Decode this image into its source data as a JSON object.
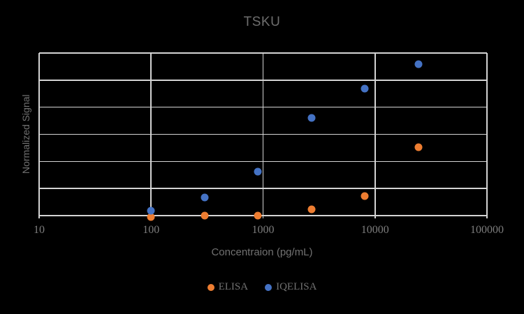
{
  "colors": {
    "background": "#000000",
    "gridline": "#d4d4d4",
    "title_text": "#6e6e6e",
    "axis_text": "#717171",
    "tick_text": "#7d7d7d",
    "elisa_orange": "#ED7D31",
    "iqelisa_blue": "#4472C4"
  },
  "chart_data": {
    "type": "scatter",
    "title": "TSKU",
    "xlabel": "Concentraion (pg/mL)",
    "ylabel": "Normalized Signal",
    "x_scale": "log10",
    "xlim": [
      10,
      100000
    ],
    "x_ticks": [
      "10",
      "100",
      "1000",
      "10000",
      "100000"
    ],
    "ylim": [
      0,
      1
    ],
    "y_tick_labels_shown": false,
    "y_divisions": 6,
    "grid": true,
    "legend_position": "bottom",
    "x": [
      100,
      300,
      900,
      2700,
      8100,
      24300
    ],
    "series": [
      {
        "name": "ELISA",
        "color": "#ED7D31",
        "values": [
          -0.008,
          0.0,
          0.0,
          0.04,
          0.12,
          0.42
        ]
      },
      {
        "name": "IQELISA",
        "color": "#4472C4",
        "values": [
          0.03,
          0.11,
          0.27,
          0.6,
          0.78,
          0.93
        ]
      }
    ]
  }
}
